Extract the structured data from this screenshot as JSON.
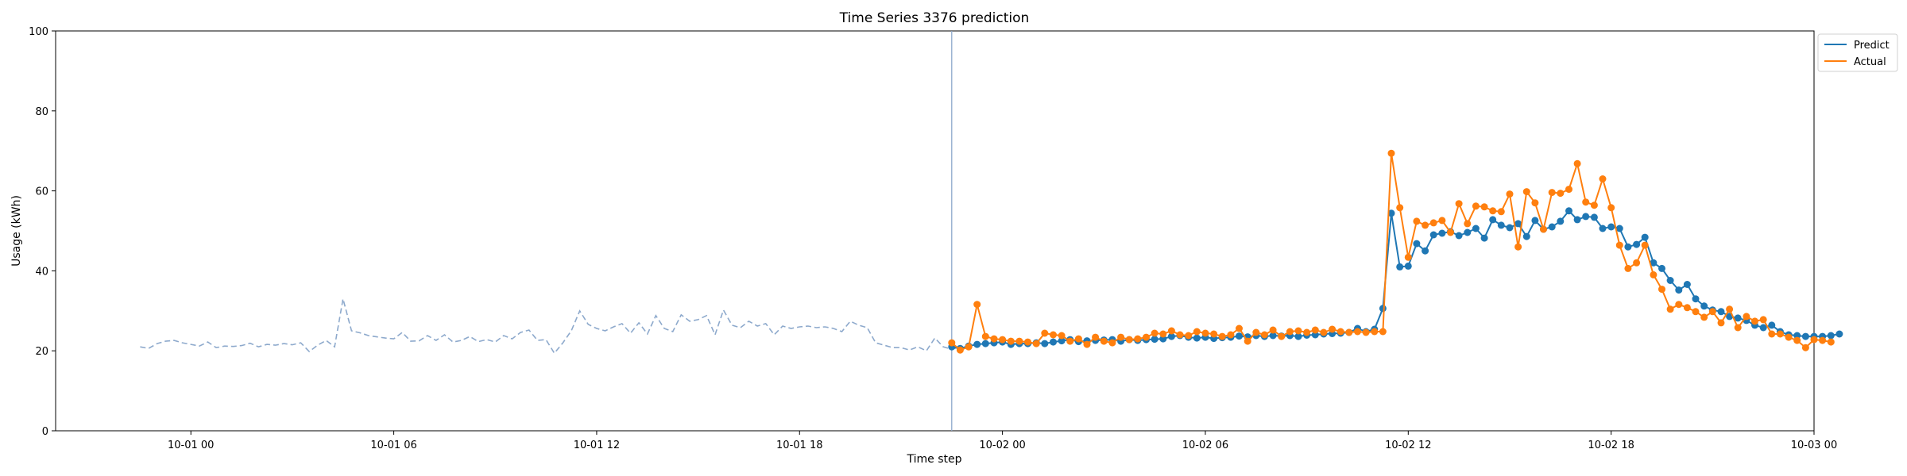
{
  "chart_data": {
    "type": "line",
    "title": "Time Series 3376 prediction",
    "xlabel": "Time step",
    "ylabel": "Usage (kWh)",
    "ylim": [
      0,
      100
    ],
    "yticks": [
      "0",
      "20",
      "40",
      "60",
      "80",
      "100"
    ],
    "xlim": [
      "09-30 20:00",
      "10-03 00:00"
    ],
    "xticks": [
      "10-01 00",
      "10-01 06",
      "10-01 12",
      "10-01 18",
      "10-02 00",
      "10-02 06",
      "10-02 12",
      "10-02 18",
      "10-03 00"
    ],
    "grid": false,
    "legend": {
      "placement": "top-right, outside plot",
      "entries": [
        "Predict",
        "Actual"
      ]
    },
    "forecast_start": "10-01 22:30",
    "colors": {
      "predict": "#1f77b4",
      "actual": "#ff7f0e",
      "history": "#8da9cc",
      "divider": "#8da9cc"
    },
    "history": {
      "start": "09-30 22:30",
      "step_minutes": 15,
      "values": [
        21.0,
        20.6,
        21.8,
        22.4,
        22.6,
        22.0,
        21.6,
        21.2,
        22.2,
        20.8,
        21.2,
        21.1,
        21.3,
        21.9,
        21.0,
        21.6,
        21.4,
        21.8,
        21.5,
        22.0,
        19.8,
        21.4,
        22.6,
        21.0,
        33.0,
        25.0,
        24.5,
        23.8,
        23.5,
        23.2,
        23.0,
        24.6,
        22.4,
        22.5,
        23.8,
        22.6,
        24.0,
        22.2,
        22.6,
        23.6,
        22.3,
        22.8,
        22.2,
        23.8,
        23.0,
        24.6,
        25.2,
        22.6,
        22.8,
        19.4,
        22.0,
        25.0,
        30.0,
        26.6,
        25.6,
        25.0,
        26.0,
        26.8,
        24.4,
        27.0,
        24.2,
        28.8,
        25.6,
        24.8,
        29.0,
        27.4,
        27.8,
        28.8,
        24.0,
        30.2,
        26.4,
        25.8,
        27.4,
        26.2,
        26.8,
        24.0,
        26.2,
        25.6,
        26.0,
        26.2,
        25.8,
        26.0,
        25.6,
        24.8,
        27.4,
        26.4,
        25.8,
        22.0,
        21.4,
        20.8,
        20.8,
        20.2,
        21.0,
        20.0,
        23.2,
        21.0,
        20.4,
        21.0
      ]
    },
    "forecast": {
      "start": "10-01 22:30",
      "step_minutes": 15,
      "series": [
        {
          "name": "Predict",
          "values": [
            21.0,
            20.6,
            21.2,
            21.6,
            21.8,
            22.0,
            22.2,
            21.6,
            21.8,
            21.8,
            22.0,
            21.8,
            22.2,
            22.5,
            22.8,
            22.3,
            22.5,
            22.6,
            22.7,
            22.8,
            22.4,
            22.8,
            22.6,
            22.8,
            22.9,
            23.0,
            23.6,
            23.8,
            23.4,
            23.2,
            23.4,
            23.1,
            23.3,
            23.4,
            23.7,
            23.5,
            23.8,
            23.6,
            23.8,
            23.7,
            23.8,
            23.6,
            23.9,
            24.0,
            24.2,
            24.3,
            24.4,
            24.6,
            25.6,
            24.8,
            25.4,
            30.6,
            54.4,
            41.0,
            41.2,
            46.8,
            45.0,
            49.0,
            49.4,
            49.8,
            48.8,
            49.6,
            50.6,
            48.2,
            52.8,
            51.4,
            50.8,
            51.8,
            48.6,
            52.6,
            50.4,
            51.0,
            52.4,
            55.0,
            52.8,
            53.6,
            53.4,
            50.6,
            51.0,
            50.6,
            46.0,
            46.6,
            48.4,
            42.0,
            40.6,
            37.6,
            35.2,
            36.6,
            33.0,
            31.2,
            30.2,
            29.8,
            28.6,
            28.2,
            27.6,
            26.4,
            25.8,
            26.4,
            24.8,
            24.0,
            23.8,
            23.6,
            23.6,
            23.6,
            23.8,
            24.2
          ]
        },
        {
          "name": "Actual",
          "values": [
            22.0,
            20.2,
            21.0,
            31.6,
            23.6,
            23.0,
            22.8,
            22.4,
            22.4,
            22.2,
            21.8,
            24.4,
            24.0,
            23.8,
            22.4,
            23.0,
            21.6,
            23.4,
            22.4,
            22.0,
            23.4,
            22.8,
            23.0,
            23.4,
            24.4,
            24.2,
            25.0,
            24.0,
            23.8,
            24.8,
            24.4,
            24.2,
            23.6,
            24.0,
            25.6,
            22.4,
            24.6,
            24.0,
            25.2,
            23.6,
            24.8,
            25.0,
            24.6,
            25.2,
            24.6,
            25.4,
            24.8,
            24.6,
            24.8,
            24.6,
            24.8,
            24.8,
            69.4,
            55.8,
            43.4,
            52.4,
            51.4,
            52.0,
            52.6,
            49.6,
            56.8,
            51.8,
            56.2,
            56.0,
            55.0,
            54.8,
            59.2,
            46.0,
            59.8,
            57.0,
            50.4,
            59.6,
            59.4,
            60.4,
            66.8,
            57.2,
            56.4,
            63.0,
            55.8,
            46.4,
            40.6,
            42.0,
            46.4,
            39.0,
            35.4,
            30.4,
            31.6,
            30.8,
            29.8,
            28.4,
            29.8,
            27.0,
            30.4,
            25.8,
            28.6,
            27.4,
            27.8,
            24.2,
            24.2,
            23.4,
            22.6,
            20.8,
            22.8,
            22.6,
            22.2
          ]
        }
      ]
    }
  }
}
